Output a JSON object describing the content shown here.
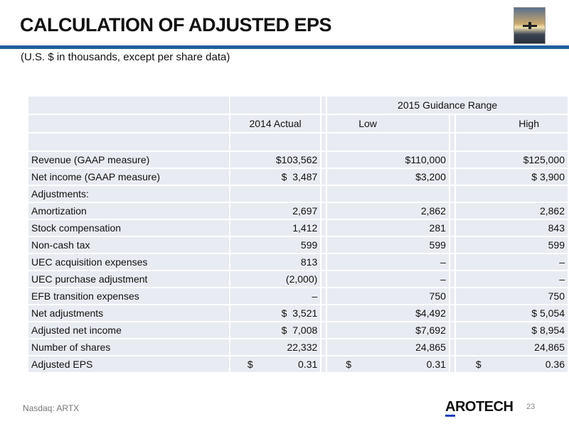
{
  "title": "CALCULATION OF ADJUSTED EPS",
  "subtitle": "(U.S. $ in thousands, except per share data)",
  "table": {
    "group_header": "2015 Guidance Range",
    "columns": [
      "2014 Actual",
      "Low",
      "High"
    ],
    "rows": [
      {
        "label": "Revenue (GAAP measure)",
        "actual": "$103,562",
        "low": "$110,000",
        "high": "$125,000"
      },
      {
        "label": "Net income (GAAP measure)",
        "actual": "$  3,487",
        "low": "$3,200",
        "high": "$ 3,900"
      },
      {
        "label": "Adjustments:",
        "actual": "",
        "low": "",
        "high": ""
      },
      {
        "label": "Amortization",
        "actual": "2,697",
        "low": "2,862",
        "high": "2,862"
      },
      {
        "label": "Stock compensation",
        "actual": "1,412",
        "low": "281",
        "high": "843"
      },
      {
        "label": "Non-cash tax",
        "actual": "599",
        "low": "599",
        "high": "599"
      },
      {
        "label": "UEC acquisition expenses",
        "actual": "813",
        "low": "–",
        "high": "–"
      },
      {
        "label": "UEC purchase adjustment",
        "actual": "(2,000)",
        "low": "–",
        "high": "–"
      },
      {
        "label": "EFB transition expenses",
        "actual": "–",
        "low": "750",
        "high": "750"
      },
      {
        "label": "Net adjustments",
        "actual": "$  3,521",
        "low": "$4,492",
        "high": "$ 5,054"
      },
      {
        "label": "Adjusted net income",
        "actual": "$  7,008",
        "low": "$7,692",
        "high": "$ 8,954"
      },
      {
        "label": "Number of shares",
        "actual": "22,332",
        "low": "24,865",
        "high": "24,865"
      }
    ],
    "eps": {
      "label": "Adjusted EPS",
      "currency": "$",
      "actual": "0.31",
      "low": "0.31",
      "high": "0.36"
    }
  },
  "footer": {
    "ticker": "Nasdaq: ARTX",
    "logo": "AROTECH",
    "page": "23"
  },
  "colors": {
    "rule": "#1f5f9e",
    "cell": "#e9ebf2"
  }
}
